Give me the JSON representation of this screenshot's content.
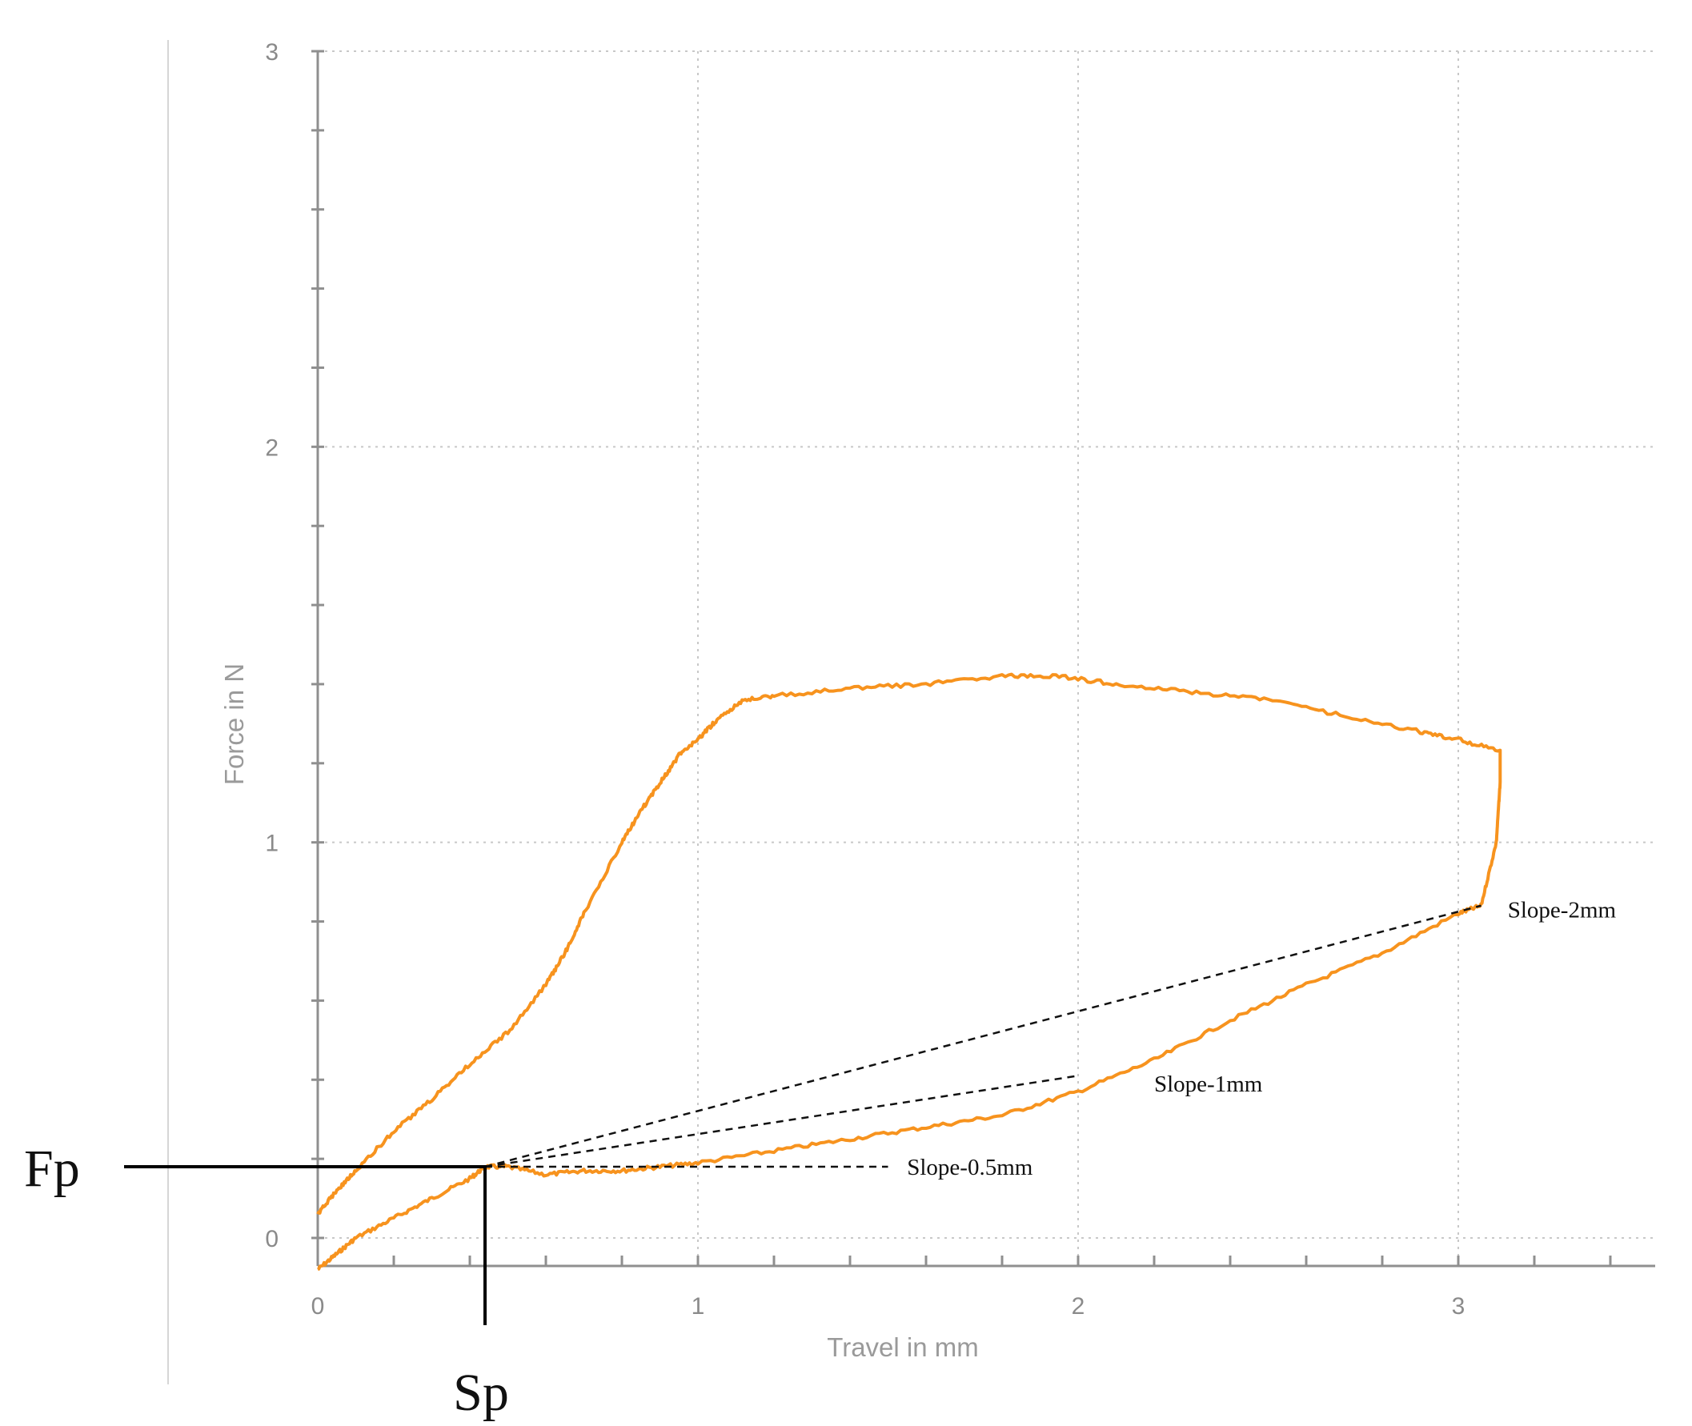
{
  "chart_data": {
    "type": "line",
    "xlabel": "Travel in mm",
    "ylabel": "Force in N",
    "xlim": [
      0,
      3.5
    ],
    "ylim": [
      -0.08,
      3
    ],
    "xticks": [
      0,
      1,
      2,
      3
    ],
    "yticks": [
      0,
      1,
      2,
      3
    ],
    "grid": true,
    "legend": "none",
    "line_color": "#f7931e",
    "series": [
      {
        "points": [
          [
            0,
            -0.08
          ],
          [
            0.05,
            -0.04
          ],
          [
            0.1,
            0.0
          ],
          [
            0.2,
            0.05
          ],
          [
            0.3,
            0.1
          ],
          [
            0.4,
            0.15
          ],
          [
            0.44,
            0.18
          ],
          [
            0.5,
            0.18
          ],
          [
            0.6,
            0.16
          ],
          [
            0.7,
            0.17
          ],
          [
            0.8,
            0.17
          ],
          [
            0.9,
            0.18
          ],
          [
            1.0,
            0.19
          ],
          [
            1.2,
            0.22
          ],
          [
            1.4,
            0.25
          ],
          [
            1.6,
            0.28
          ],
          [
            1.8,
            0.31
          ],
          [
            2.0,
            0.37
          ],
          [
            2.2,
            0.45
          ],
          [
            2.4,
            0.55
          ],
          [
            2.6,
            0.64
          ],
          [
            2.8,
            0.72
          ],
          [
            3.0,
            0.82
          ],
          [
            3.06,
            0.84
          ],
          [
            3.1,
            1.0
          ],
          [
            3.11,
            1.15
          ],
          [
            3.11,
            1.23
          ],
          [
            3.0,
            1.26
          ],
          [
            2.9,
            1.28
          ],
          [
            2.7,
            1.32
          ],
          [
            2.5,
            1.36
          ],
          [
            2.3,
            1.38
          ],
          [
            2.1,
            1.4
          ],
          [
            1.95,
            1.42
          ],
          [
            1.8,
            1.42
          ],
          [
            1.6,
            1.4
          ],
          [
            1.4,
            1.39
          ],
          [
            1.2,
            1.37
          ],
          [
            1.12,
            1.36
          ],
          [
            1.05,
            1.31
          ],
          [
            1.0,
            1.26
          ],
          [
            0.95,
            1.22
          ],
          [
            0.9,
            1.15
          ],
          [
            0.85,
            1.08
          ],
          [
            0.8,
            1.0
          ],
          [
            0.7,
            0.82
          ],
          [
            0.65,
            0.72
          ],
          [
            0.6,
            0.64
          ],
          [
            0.5,
            0.52
          ],
          [
            0.4,
            0.44
          ],
          [
            0.3,
            0.35
          ],
          [
            0.2,
            0.27
          ],
          [
            0.1,
            0.17
          ],
          [
            0.05,
            0.12
          ],
          [
            0.0,
            0.06
          ]
        ]
      }
    ],
    "slope_lines": [
      {
        "label": "Slope-0.5mm",
        "from": [
          0.44,
          0.18
        ],
        "to": [
          1.5,
          0.18
        ],
        "label_at": [
          1.55,
          0.18
        ]
      },
      {
        "label": "Slope-1mm",
        "from": [
          0.44,
          0.18
        ],
        "to": [
          2.0,
          0.41
        ],
        "label_at": [
          2.2,
          0.39
        ]
      },
      {
        "label": "Slope-2mm",
        "from": [
          0.44,
          0.18
        ],
        "to": [
          3.06,
          0.84
        ],
        "label_at": [
          3.13,
          0.83
        ]
      }
    ],
    "marker": {
      "x": 0.44,
      "y": 0.18,
      "x_label": "Sp",
      "y_label": "Fp"
    }
  }
}
